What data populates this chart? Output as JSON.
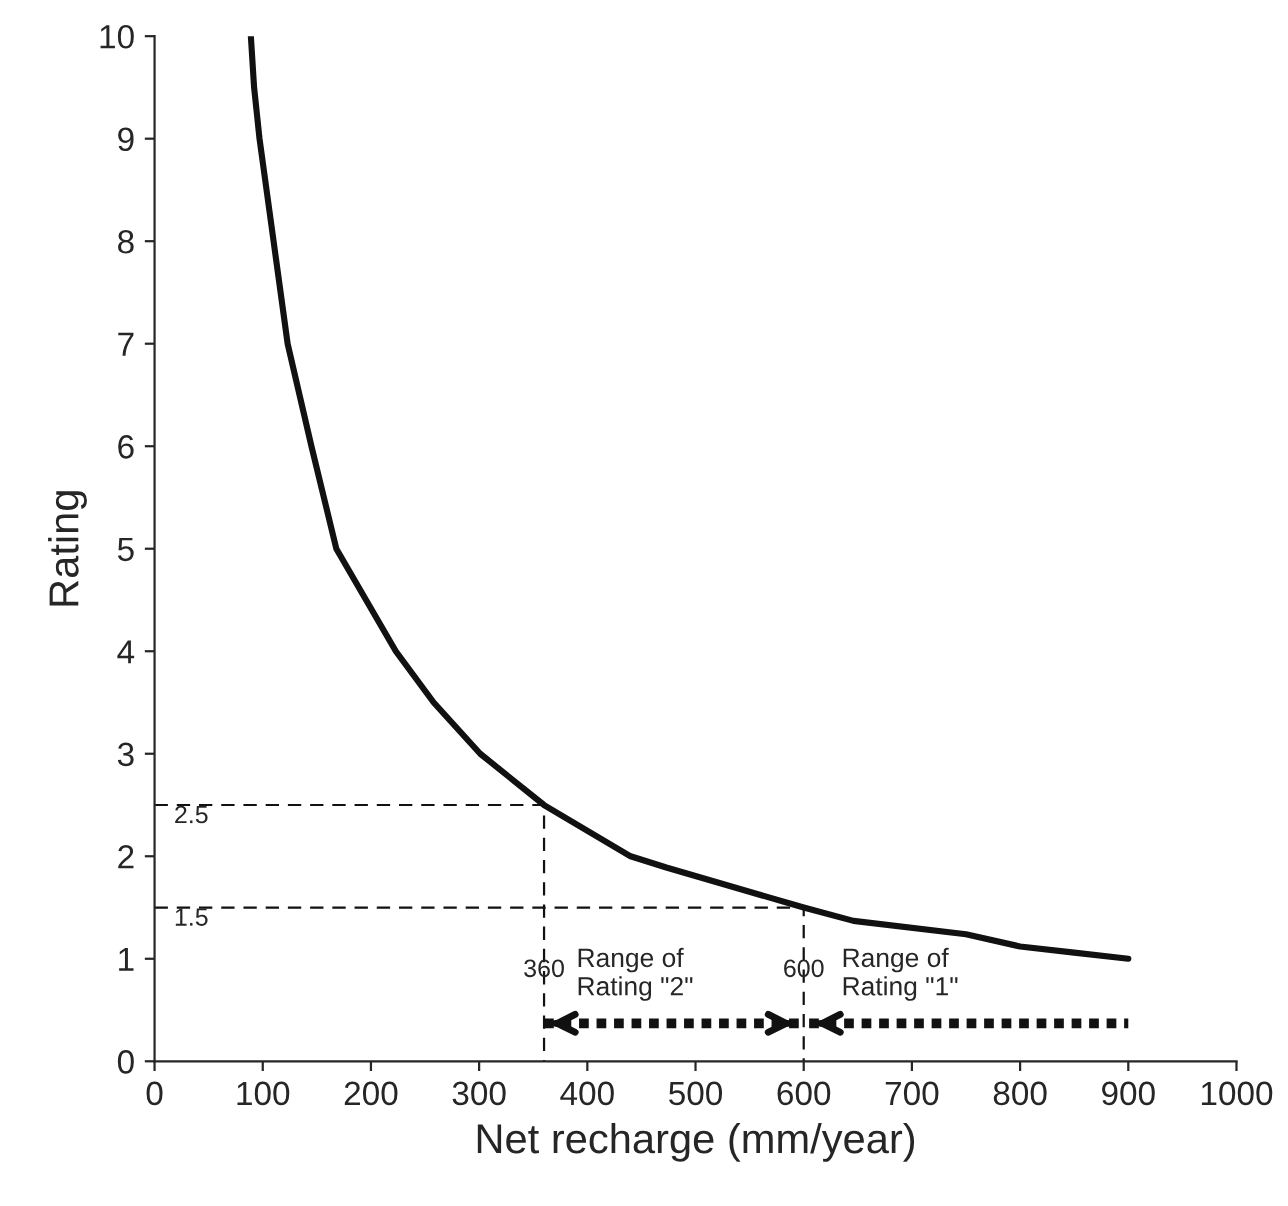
{
  "chart_data": {
    "type": "line",
    "xlabel": "Net recharge (mm/year)",
    "ylabel": "Rating",
    "series": [
      {
        "color": "#111111",
        "x": [
          89,
          92,
          97,
          110,
          123,
          145,
          168,
          223,
          258,
          301,
          360,
          440,
          473,
          600,
          646,
          750,
          800,
          850,
          900
        ],
        "values": [
          10,
          9.5,
          9,
          8,
          7,
          6,
          5,
          4,
          3.5,
          3,
          2.5,
          2,
          1.89,
          1.5,
          1.37,
          1.24,
          1.12,
          1.06,
          1.0
        ]
      },
      {
        "type": "line",
        "line_style": "dashed",
        "color": "#111111",
        "x": [
          0,
          360,
          360
        ],
        "values": [
          2.5,
          2.5,
          0
        ]
      },
      {
        "type": "line",
        "line_style": "dashed",
        "color": "#111111",
        "x": [
          0,
          600,
          600
        ],
        "values": [
          1.5,
          1.5,
          0
        ]
      },
      {
        "type": "line",
        "line_style": "dotted",
        "color": "#111111",
        "x": [
          360,
          596
        ],
        "values": [
          0.37,
          0.37
        ]
      },
      {
        "type": "line",
        "line_style": "dotted",
        "color": "#111111",
        "x": [
          605,
          900
        ],
        "values": [
          0.37,
          0.37
        ]
      }
    ],
    "annotations": [
      {
        "text": "2.5",
        "x": 50,
        "y": 2.5
      },
      {
        "text": "1.5",
        "x": 50,
        "y": 1.5
      },
      {
        "text": "360",
        "x": 360,
        "y": 1
      },
      {
        "text": "600",
        "x": 600,
        "y": 1
      },
      "Range of\nRating \"2\"",
      "Range of\nRating \"1\""
    ],
    "xlim": [
      0,
      1000
    ],
    "xticks": [
      0,
      100,
      200,
      300,
      400,
      500,
      600,
      700,
      800,
      900,
      1000
    ],
    "ylim": [
      0,
      10
    ],
    "yticks": [
      0,
      1,
      2,
      3,
      4,
      5,
      6,
      7,
      8,
      9,
      10
    ],
    "grid": false,
    "legend": false
  }
}
